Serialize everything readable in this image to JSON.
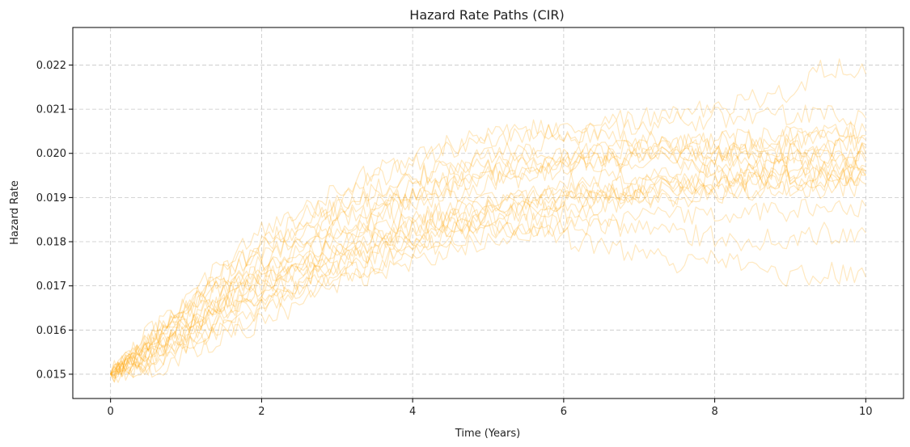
{
  "chart_data": {
    "type": "line",
    "title": "Hazard Rate Paths (CIR)",
    "xlabel": "Time (Years)",
    "ylabel": "Hazard Rate",
    "xlim": [
      -0.5,
      10.5
    ],
    "ylim": [
      0.01445,
      0.02285
    ],
    "xticks": [
      0,
      2,
      4,
      6,
      8,
      10
    ],
    "xtick_labels": [
      "0",
      "2",
      "4",
      "6",
      "8",
      "10"
    ],
    "yticks": [
      0.015,
      0.016,
      0.017,
      0.018,
      0.019,
      0.02,
      0.021,
      0.022
    ],
    "ytick_labels": [
      "0.015",
      "0.016",
      "0.017",
      "0.018",
      "0.019",
      "0.020",
      "0.021",
      "0.022"
    ],
    "grid": true,
    "line_color": "#ffa500",
    "line_alpha": 0.25,
    "x": [
      0,
      0.5,
      1,
      1.5,
      2,
      2.5,
      3,
      3.5,
      4,
      4.5,
      5,
      5.5,
      6,
      6.5,
      7,
      7.5,
      8,
      8.5,
      9,
      9.5,
      10
    ],
    "series": [
      {
        "values": [
          0.015,
          0.0156,
          0.0162,
          0.0167,
          0.0172,
          0.0176,
          0.0179,
          0.0182,
          0.0185,
          0.0187,
          0.0189,
          0.0191,
          0.0193,
          0.0194,
          0.0195,
          0.0196,
          0.0197,
          0.0198,
          0.0199,
          0.0199,
          0.02
        ]
      },
      {
        "values": [
          0.015,
          0.0158,
          0.0166,
          0.0173,
          0.0179,
          0.0185,
          0.019,
          0.0194,
          0.0198,
          0.0201,
          0.0203,
          0.0205,
          0.0206,
          0.0207,
          0.0208,
          0.0209,
          0.021,
          0.0212,
          0.0214,
          0.022,
          0.0218
        ]
      },
      {
        "values": [
          0.015,
          0.0153,
          0.0157,
          0.0161,
          0.0165,
          0.0169,
          0.0172,
          0.0175,
          0.0178,
          0.018,
          0.0182,
          0.0183,
          0.0181,
          0.0179,
          0.0177,
          0.0175,
          0.0176,
          0.0174,
          0.0172,
          0.0173,
          0.0172
        ]
      },
      {
        "values": [
          0.015,
          0.0155,
          0.016,
          0.0165,
          0.017,
          0.0174,
          0.0178,
          0.0181,
          0.0183,
          0.0186,
          0.0188,
          0.019,
          0.0191,
          0.0192,
          0.0193,
          0.0194,
          0.0195,
          0.0196,
          0.0197,
          0.0198,
          0.0198
        ]
      },
      {
        "values": [
          0.015,
          0.0157,
          0.0164,
          0.017,
          0.0176,
          0.0181,
          0.0186,
          0.0189,
          0.0192,
          0.0195,
          0.0197,
          0.0198,
          0.0199,
          0.02,
          0.0201,
          0.0202,
          0.0203,
          0.0203,
          0.0204,
          0.0205,
          0.0205
        ]
      },
      {
        "values": [
          0.015,
          0.0152,
          0.0156,
          0.016,
          0.0164,
          0.0168,
          0.0172,
          0.0175,
          0.0178,
          0.018,
          0.0182,
          0.0184,
          0.0186,
          0.0188,
          0.0189,
          0.019,
          0.0191,
          0.0192,
          0.0193,
          0.0194,
          0.0195
        ]
      },
      {
        "values": [
          0.015,
          0.0159,
          0.0167,
          0.0175,
          0.0182,
          0.0187,
          0.0192,
          0.0196,
          0.0199,
          0.0202,
          0.0204,
          0.0205,
          0.0205,
          0.0204,
          0.0203,
          0.0202,
          0.0201,
          0.02,
          0.02,
          0.0199,
          0.0199
        ]
      },
      {
        "values": [
          0.015,
          0.0154,
          0.0159,
          0.0163,
          0.0168,
          0.0172,
          0.0175,
          0.0178,
          0.018,
          0.0182,
          0.0183,
          0.0184,
          0.0184,
          0.0185,
          0.0185,
          0.0186,
          0.0186,
          0.0187,
          0.0187,
          0.0188,
          0.0188
        ]
      },
      {
        "values": [
          0.015,
          0.0156,
          0.0161,
          0.0167,
          0.0173,
          0.0178,
          0.0182,
          0.0186,
          0.0189,
          0.0192,
          0.0194,
          0.0196,
          0.0197,
          0.0198,
          0.0198,
          0.0199,
          0.0199,
          0.02,
          0.02,
          0.0201,
          0.0201
        ]
      },
      {
        "values": [
          0.015,
          0.0151,
          0.0154,
          0.0158,
          0.0162,
          0.0166,
          0.017,
          0.0173,
          0.0176,
          0.0178,
          0.018,
          0.0182,
          0.0183,
          0.0184,
          0.0183,
          0.0182,
          0.0181,
          0.018,
          0.0181,
          0.0182,
          0.0182
        ]
      },
      {
        "values": [
          0.015,
          0.0158,
          0.0165,
          0.0172,
          0.0178,
          0.0183,
          0.0187,
          0.0191,
          0.0194,
          0.0197,
          0.0199,
          0.0201,
          0.0203,
          0.0205,
          0.0206,
          0.0207,
          0.0208,
          0.0209,
          0.0209,
          0.0209,
          0.0208
        ]
      },
      {
        "values": [
          0.015,
          0.0155,
          0.0161,
          0.0166,
          0.0171,
          0.0175,
          0.0179,
          0.0182,
          0.0185,
          0.0187,
          0.0189,
          0.019,
          0.0191,
          0.0192,
          0.0192,
          0.0193,
          0.0193,
          0.0194,
          0.0194,
          0.0195,
          0.0195
        ]
      },
      {
        "values": [
          0.015,
          0.0153,
          0.0158,
          0.0163,
          0.0167,
          0.0171,
          0.0175,
          0.0178,
          0.0181,
          0.0184,
          0.0186,
          0.0188,
          0.019,
          0.0191,
          0.0192,
          0.0193,
          0.0194,
          0.0194,
          0.0195,
          0.0195,
          0.0196
        ]
      },
      {
        "values": [
          0.015,
          0.0157,
          0.0163,
          0.0169,
          0.0174,
          0.0179,
          0.0183,
          0.0187,
          0.019,
          0.0193,
          0.0195,
          0.0197,
          0.0198,
          0.0199,
          0.0199,
          0.02,
          0.02,
          0.0201,
          0.0202,
          0.0203,
          0.0203
        ]
      },
      {
        "values": [
          0.015,
          0.0154,
          0.016,
          0.0165,
          0.017,
          0.0174,
          0.0177,
          0.018,
          0.0182,
          0.0184,
          0.0186,
          0.0187,
          0.0188,
          0.0189,
          0.019,
          0.019,
          0.0191,
          0.0191,
          0.0192,
          0.0192,
          0.0193
        ]
      },
      {
        "values": [
          0.015,
          0.0156,
          0.0162,
          0.0168,
          0.0173,
          0.0177,
          0.0181,
          0.0185,
          0.0188,
          0.0191,
          0.0193,
          0.0195,
          0.0197,
          0.0198,
          0.0199,
          0.02,
          0.02,
          0.0201,
          0.0201,
          0.0201,
          0.0202
        ]
      },
      {
        "values": [
          0.015,
          0.0152,
          0.0157,
          0.0162,
          0.0166,
          0.017,
          0.0174,
          0.0177,
          0.018,
          0.0183,
          0.0185,
          0.0187,
          0.0189,
          0.019,
          0.0191,
          0.0192,
          0.0193,
          0.0194,
          0.0195,
          0.0196,
          0.0197
        ]
      },
      {
        "values": [
          0.015,
          0.0159,
          0.0166,
          0.0173,
          0.0179,
          0.0184,
          0.0188,
          0.0192,
          0.0195,
          0.0197,
          0.0199,
          0.02,
          0.02,
          0.02,
          0.0199,
          0.0198,
          0.0198,
          0.0197,
          0.0197,
          0.0196,
          0.0196
        ]
      },
      {
        "values": [
          0.015,
          0.0155,
          0.016,
          0.0165,
          0.0169,
          0.0173,
          0.0177,
          0.018,
          0.0183,
          0.0185,
          0.0187,
          0.0189,
          0.019,
          0.0191,
          0.0192,
          0.0193,
          0.0193,
          0.0194,
          0.0194,
          0.0194,
          0.0195
        ]
      },
      {
        "values": [
          0.015,
          0.0157,
          0.0163,
          0.017,
          0.0175,
          0.018,
          0.0184,
          0.0188,
          0.0191,
          0.0193,
          0.0196,
          0.0197,
          0.0199,
          0.02,
          0.0201,
          0.0202,
          0.0203,
          0.0203,
          0.0204,
          0.0204,
          0.0204
        ]
      }
    ]
  }
}
